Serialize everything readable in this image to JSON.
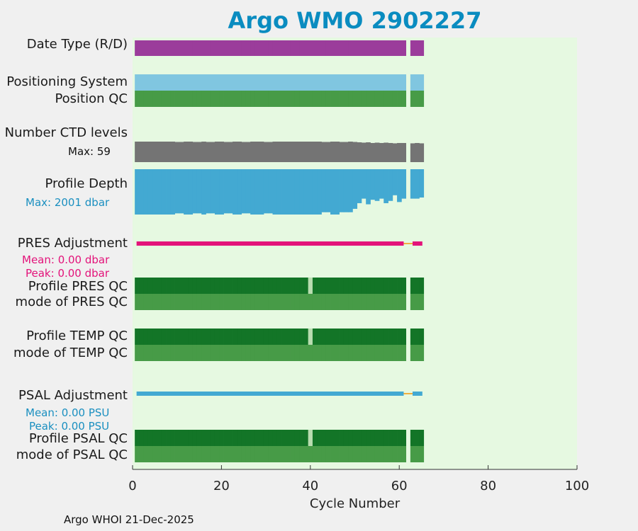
{
  "title": "Argo WMO 2902227",
  "footer": "Argo WHOI 21-Dec-2025",
  "colors": {
    "background": "#e6f9e1",
    "date_type": "#9b3c9b",
    "positioning": "#80c6e0",
    "qc_good": "#479b47",
    "qc_dark": "#137527",
    "ctd": "#747474",
    "depth": "#43a9d2",
    "pres_adj": "#e3137a",
    "psal_adj": "#43a9d2",
    "missing": "#f0b040",
    "title": "#0a8cc0"
  },
  "rows": {
    "date_type": "Date Type (R/D)",
    "positioning": "Positioning System",
    "position_qc": "Position QC",
    "ctd_levels": "Number CTD levels",
    "ctd_max": "Max: 59",
    "profile_depth": "Profile Depth",
    "depth_max": "Max: 2001 dbar",
    "pres_adj": "PRES Adjustment",
    "pres_mean": "Mean: 0.00 dbar",
    "pres_peak": "Peak: 0.00 dbar",
    "profile_pres_qc": "Profile PRES QC",
    "mode_pres_qc": "mode of PRES QC",
    "profile_temp_qc": "Profile TEMP QC",
    "mode_temp_qc": "mode of TEMP QC",
    "psal_adj": "PSAL Adjustment",
    "psal_mean": "Mean: 0.00 PSU",
    "psal_peak": "Peak: 0.00 PSU",
    "profile_psal_qc": "Profile PSAL QC",
    "mode_psal_qc": "mode of PSAL QC"
  },
  "chart_data": {
    "type": "bar",
    "xlabel": "Cycle Number",
    "xlim": [
      0,
      100
    ],
    "xticks": [
      0,
      20,
      40,
      60,
      80,
      100
    ],
    "first_cycle": 1,
    "last_cycle": 65,
    "missing_cycles": [
      62
    ],
    "profile_qc_gap_cycles": [
      40
    ],
    "ctd_levels": [
      59,
      59,
      59,
      59,
      59,
      59,
      59,
      59,
      59,
      58,
      58,
      59,
      59,
      58,
      58,
      59,
      58,
      58,
      59,
      59,
      58,
      58,
      59,
      59,
      58,
      58,
      59,
      59,
      59,
      58,
      58,
      59,
      59,
      59,
      59,
      59,
      59,
      59,
      59,
      59,
      59,
      59,
      58,
      58,
      59,
      59,
      58,
      58,
      59,
      58,
      57,
      56,
      57,
      55,
      56,
      55,
      56,
      55,
      54,
      55,
      55,
      null,
      54,
      55,
      54
    ],
    "profile_depth": [
      2001,
      2001,
      2001,
      2001,
      2001,
      2001,
      2001,
      2001,
      2001,
      1950,
      1950,
      2001,
      2001,
      1950,
      1950,
      2001,
      1950,
      1950,
      2001,
      2001,
      1950,
      1950,
      2001,
      2001,
      1950,
      1950,
      2001,
      2001,
      2001,
      1950,
      1950,
      2001,
      2001,
      2001,
      2001,
      2001,
      2001,
      2001,
      2001,
      2001,
      2001,
      2001,
      1900,
      1900,
      2001,
      2001,
      1900,
      1900,
      1900,
      1750,
      1500,
      1300,
      1550,
      1350,
      1400,
      1300,
      1500,
      1400,
      1150,
      1450,
      1300,
      null,
      1300,
      1300,
      1250
    ],
    "depth_max": 2001,
    "ctd_max": 59
  }
}
